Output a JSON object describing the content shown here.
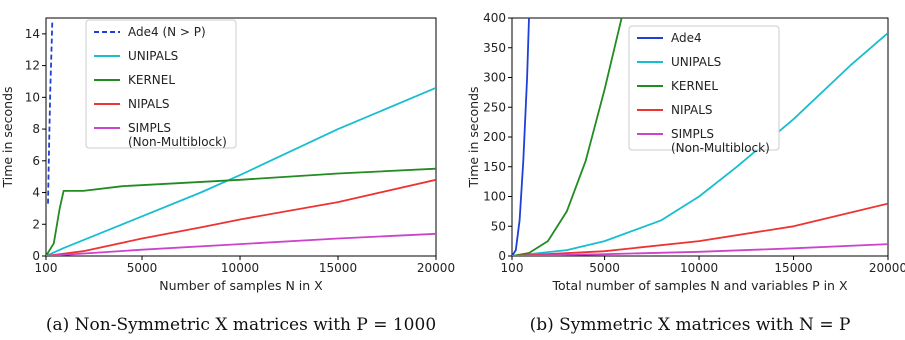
{
  "chart_data": [
    {
      "type": "line",
      "xlabel": "Number of samples N in X",
      "ylabel": "Time in seconds",
      "caption": "(a) Non-Symmetric X matrices with P = 1000",
      "xlim": [
        100,
        20000
      ],
      "ylim": [
        0,
        15
      ],
      "xticks": [
        100,
        5000,
        10000,
        15000,
        20000
      ],
      "yticks": [
        0,
        2,
        4,
        6,
        8,
        10,
        12,
        14
      ],
      "grid": false,
      "legend_position": "top-center",
      "series": [
        {
          "name": "Ade4 (N > P)",
          "color": "#1f3fd6",
          "dash": true,
          "points": [
            [
              200,
              3.3
            ],
            [
              260,
              7
            ],
            [
              320,
              10.5
            ],
            [
              380,
              13
            ],
            [
              420,
              14.8
            ]
          ]
        },
        {
          "name": "UNIPALS",
          "color": "#17becf",
          "points": [
            [
              100,
              0
            ],
            [
              1000,
              0.5
            ],
            [
              4000,
              2
            ],
            [
              8000,
              4
            ],
            [
              10000,
              5.1
            ],
            [
              15000,
              8
            ],
            [
              20000,
              10.6
            ]
          ]
        },
        {
          "name": "KERNEL",
          "color": "#228b22",
          "points": [
            [
              100,
              0
            ],
            [
              500,
              0.8
            ],
            [
              800,
              3.0
            ],
            [
              1000,
              4.1
            ],
            [
              2000,
              4.1
            ],
            [
              4000,
              4.4
            ],
            [
              10000,
              4.8
            ],
            [
              15000,
              5.2
            ],
            [
              20000,
              5.5
            ]
          ]
        },
        {
          "name": "NIPALS",
          "color": "#ee3333",
          "points": [
            [
              100,
              0
            ],
            [
              2000,
              0.3
            ],
            [
              5000,
              1.1
            ],
            [
              8000,
              1.8
            ],
            [
              10000,
              2.3
            ],
            [
              15000,
              3.4
            ],
            [
              20000,
              4.8
            ]
          ]
        },
        {
          "name": "SIMPLS (Non-Multiblock)",
          "color": "#cc44cc",
          "points": [
            [
              100,
              0
            ],
            [
              5000,
              0.4
            ],
            [
              10000,
              0.75
            ],
            [
              15000,
              1.1
            ],
            [
              20000,
              1.4
            ]
          ]
        }
      ]
    },
    {
      "type": "line",
      "xlabel": "Total number of samples N and variables P in X",
      "ylabel": "Time in seconds",
      "caption": "(b) Symmetric X matrices with N = P",
      "xlim": [
        100,
        20000
      ],
      "ylim": [
        0,
        400
      ],
      "xticks": [
        100,
        5000,
        10000,
        15000,
        20000
      ],
      "yticks": [
        0,
        50,
        100,
        150,
        200,
        250,
        300,
        350,
        400
      ],
      "grid": false,
      "legend_position": "top-center",
      "series": [
        {
          "name": "Ade4",
          "color": "#1f3fd6",
          "dash": false,
          "points": [
            [
              100,
              0
            ],
            [
              300,
              10
            ],
            [
              500,
              60
            ],
            [
              700,
              160
            ],
            [
              900,
              300
            ],
            [
              1000,
              400
            ]
          ]
        },
        {
          "name": "UNIPALS",
          "color": "#17becf",
          "points": [
            [
              100,
              0
            ],
            [
              3000,
              10
            ],
            [
              5000,
              25
            ],
            [
              8000,
              60
            ],
            [
              10000,
              100
            ],
            [
              12000,
              150
            ],
            [
              15000,
              230
            ],
            [
              18000,
              320
            ],
            [
              20000,
              375
            ]
          ]
        },
        {
          "name": "KERNEL",
          "color": "#228b22",
          "points": [
            [
              100,
              0
            ],
            [
              1000,
              5
            ],
            [
              2000,
              25
            ],
            [
              3000,
              75
            ],
            [
              4000,
              160
            ],
            [
              5000,
              280
            ],
            [
              5900,
              400
            ]
          ]
        },
        {
          "name": "NIPALS",
          "color": "#ee3333",
          "points": [
            [
              100,
              0
            ],
            [
              5000,
              8
            ],
            [
              10000,
              25
            ],
            [
              15000,
              50
            ],
            [
              20000,
              88
            ]
          ]
        },
        {
          "name": "SIMPLS (Non-Multiblock)",
          "color": "#cc44cc",
          "points": [
            [
              100,
              0
            ],
            [
              5000,
              3
            ],
            [
              10000,
              7
            ],
            [
              15000,
              13
            ],
            [
              20000,
              20
            ]
          ]
        }
      ]
    }
  ]
}
